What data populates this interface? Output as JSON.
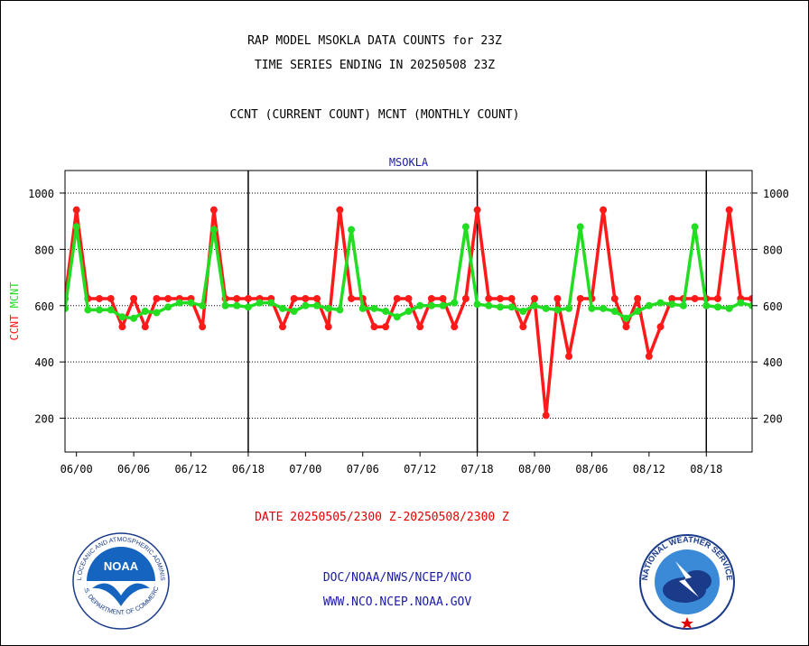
{
  "header": {
    "line1": "RAP MODEL MSOKLA DATA COUNTS for 23Z",
    "line2": "TIME SERIES ENDING IN 20250508 23Z",
    "line3": "CCNT (CURRENT COUNT) MCNT (MONTHLY COUNT)"
  },
  "footer": {
    "date_range": "DATE 20250505/2300 Z-20250508/2300 Z",
    "org": "DOC/NOAA/NWS/NCEP/NCO",
    "website": "WWW.NCO.NCEP.NOAA.GOV"
  },
  "logos": {
    "left": "NOAA",
    "right": "NATIONAL WEATHER SERVICE"
  },
  "colors": {
    "ccnt": "#ff1a1a",
    "mcnt": "#22dd22",
    "station": "#1a1aa8"
  },
  "chart_data": {
    "type": "line",
    "title": "MSOKLA",
    "ylabel_left": "CCNT",
    "ylabel_right": "MCNT",
    "ylim": [
      80,
      1080
    ],
    "yticks": [
      200,
      400,
      600,
      800,
      1000
    ],
    "xlim": [
      -1,
      59
    ],
    "xticks": [
      {
        "x": 0,
        "label": "06/00"
      },
      {
        "x": 5,
        "label": "06/06"
      },
      {
        "x": 10,
        "label": "06/12"
      },
      {
        "x": 15,
        "label": "06/18"
      },
      {
        "x": 20,
        "label": "07/00"
      },
      {
        "x": 25,
        "label": "07/06"
      },
      {
        "x": 30,
        "label": "07/12"
      },
      {
        "x": 35,
        "label": "07/18"
      },
      {
        "x": 40,
        "label": "08/00"
      },
      {
        "x": 45,
        "label": "08/06"
      },
      {
        "x": 50,
        "label": "08/12"
      },
      {
        "x": 55,
        "label": "08/18"
      }
    ],
    "day_dividers": [
      15,
      35,
      55
    ],
    "grid": true,
    "series": [
      {
        "name": "CCNT",
        "x": [
          -1,
          0,
          1,
          2,
          3,
          4,
          5,
          6,
          7,
          8,
          9,
          10,
          11,
          12,
          13,
          14,
          15,
          16,
          17,
          18,
          19,
          20,
          21,
          22,
          23,
          24,
          25,
          26,
          27,
          28,
          29,
          30,
          31,
          32,
          33,
          34,
          35,
          36,
          37,
          38,
          39,
          40,
          41,
          42,
          43,
          44,
          45,
          46,
          47,
          48,
          49,
          50,
          51,
          52,
          53,
          54,
          55,
          56,
          57,
          58,
          59
        ],
        "values": [
          625,
          940,
          625,
          625,
          625,
          525,
          625,
          525,
          625,
          625,
          625,
          625,
          525,
          940,
          625,
          625,
          625,
          625,
          625,
          525,
          625,
          625,
          625,
          525,
          940,
          625,
          625,
          525,
          525,
          625,
          625,
          525,
          625,
          625,
          525,
          625,
          940,
          625,
          625,
          625,
          525,
          625,
          210,
          625,
          420,
          625,
          625,
          940,
          625,
          525,
          625,
          420,
          525,
          625,
          625,
          625,
          625,
          625,
          940,
          625,
          625
        ]
      },
      {
        "name": "MCNT",
        "x": [
          -1,
          0,
          1,
          2,
          3,
          4,
          5,
          6,
          7,
          8,
          9,
          10,
          11,
          12,
          13,
          14,
          15,
          16,
          17,
          18,
          19,
          20,
          21,
          22,
          23,
          24,
          25,
          26,
          27,
          28,
          29,
          30,
          31,
          32,
          33,
          34,
          35,
          36,
          37,
          38,
          39,
          40,
          41,
          42,
          43,
          44,
          45,
          46,
          47,
          48,
          49,
          50,
          51,
          52,
          53,
          54,
          55,
          56,
          57,
          58,
          59
        ],
        "values": [
          590,
          880,
          585,
          585,
          585,
          560,
          555,
          580,
          575,
          595,
          610,
          610,
          600,
          870,
          600,
          600,
          595,
          610,
          610,
          590,
          580,
          600,
          600,
          590,
          585,
          870,
          590,
          590,
          580,
          560,
          580,
          600,
          600,
          600,
          610,
          880,
          605,
          600,
          595,
          595,
          580,
          600,
          590,
          585,
          590,
          880,
          590,
          590,
          580,
          555,
          580,
          600,
          610,
          605,
          600,
          880,
          600,
          595,
          590,
          610,
          600
        ]
      }
    ]
  }
}
